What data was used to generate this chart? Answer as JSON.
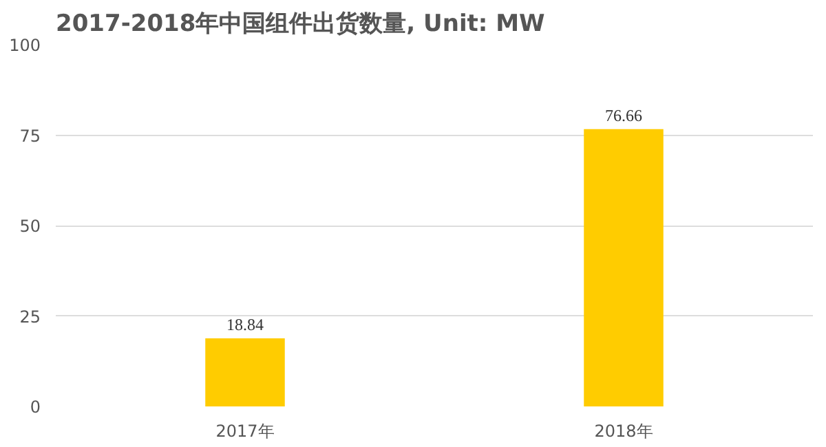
{
  "chart_data": {
    "type": "bar",
    "title": "2017-2018年中国组件出货数量, Unit: MW",
    "categories": [
      "2017年",
      "2018年"
    ],
    "values": [
      18.84,
      76.66
    ],
    "color": "#ffcc00",
    "ylim": [
      0,
      100
    ],
    "yticks": [
      0,
      25,
      50,
      75,
      100
    ],
    "grid": "y",
    "data_labels": true
  }
}
